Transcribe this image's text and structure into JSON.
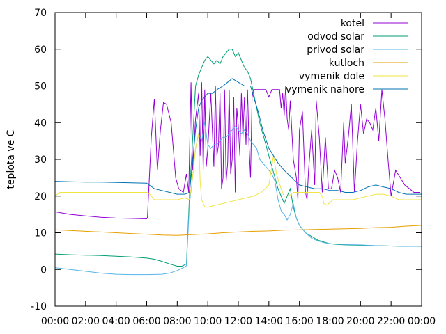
{
  "chart_data": {
    "type": "line",
    "title": "",
    "xlabel": "",
    "ylabel": "teplota ve C",
    "ylim": [
      -10,
      70
    ],
    "xlim": [
      0,
      24
    ],
    "grid": false,
    "legend_position": "top-right",
    "x_ticks": [
      "00:00",
      "02:00",
      "04:00",
      "06:00",
      "08:00",
      "10:00",
      "12:00",
      "14:00",
      "16:00",
      "18:00",
      "20:00",
      "22:00",
      "00:00"
    ],
    "y_ticks": [
      "-10",
      "0",
      "10",
      "20",
      "30",
      "40",
      "50",
      "60",
      "70"
    ],
    "series": [
      {
        "name": "kotel",
        "color": "#9400d3",
        "x": [
          0,
          1,
          2,
          3,
          4,
          5,
          6.0,
          6.05,
          6.3,
          6.5,
          6.7,
          6.9,
          7.1,
          7.3,
          7.6,
          7.9,
          8.1,
          8.4,
          8.6,
          8.75,
          8.9,
          9.0,
          9.2,
          9.4,
          9.5,
          9.6,
          9.7,
          9.8,
          9.9,
          10.0,
          10.2,
          10.4,
          10.5,
          10.6,
          10.7,
          10.8,
          10.9,
          11.0,
          11.1,
          11.2,
          11.3,
          11.4,
          11.5,
          11.6,
          11.7,
          11.8,
          11.9,
          12.0,
          12.1,
          12.2,
          12.3,
          12.4,
          12.5,
          12.6,
          12.7,
          12.8,
          12.9,
          13.0,
          13.2,
          13.4,
          13.6,
          13.8,
          14.0,
          14.2,
          14.4,
          14.5,
          14.6,
          14.7,
          14.8,
          14.9,
          15.0,
          15.1,
          15.2,
          15.3,
          15.4,
          15.6,
          15.8,
          15.9,
          16.0,
          16.2,
          16.4,
          16.5,
          16.6,
          16.8,
          17.0,
          17.1,
          17.3,
          17.5,
          17.7,
          17.9,
          18.1,
          18.3,
          18.5,
          18.7,
          18.9,
          19.0,
          19.2,
          19.4,
          19.6,
          19.8,
          20.0,
          20.2,
          20.4,
          20.6,
          20.8,
          21.0,
          21.2,
          21.4,
          21.6,
          21.8,
          22.0,
          22.3,
          22.6,
          22.9,
          23.2,
          23.5,
          23.9
        ],
        "y": [
          15.7,
          15.0,
          14.6,
          14.2,
          14.0,
          13.9,
          13.8,
          14.2,
          36,
          46.5,
          27,
          38,
          45.5,
          45,
          40,
          25,
          22,
          21,
          26,
          21,
          51,
          27,
          41,
          48,
          31,
          51,
          27,
          49,
          28,
          33,
          48,
          28,
          50,
          31,
          34,
          48,
          22,
          25,
          49,
          24,
          29,
          49,
          26,
          30,
          47,
          21,
          44,
          39,
          31,
          48,
          36,
          47,
          34,
          49,
          34,
          25,
          47,
          49,
          49,
          49,
          49,
          49,
          47,
          49,
          49,
          49,
          49,
          49,
          44,
          48,
          42,
          50,
          41,
          38,
          46,
          30,
          25,
          19,
          38,
          43,
          21,
          19,
          27,
          38,
          23,
          46,
          36,
          21,
          36,
          22,
          22,
          27,
          25,
          21,
          40,
          29,
          36,
          45,
          21,
          35,
          45,
          37,
          41,
          40,
          38,
          44,
          35,
          49,
          41,
          30,
          20,
          27,
          25,
          23,
          22,
          21,
          21
        ]
      },
      {
        "name": "odvod solar",
        "color": "#009e73",
        "x": [
          0,
          1,
          2,
          3,
          4,
          5,
          6,
          6.5,
          7,
          7.5,
          8,
          8.3,
          8.6,
          8.8,
          9.0,
          9.2,
          9.4,
          9.6,
          9.8,
          10.0,
          10.2,
          10.4,
          10.6,
          10.8,
          11.0,
          11.2,
          11.4,
          11.6,
          11.8,
          12.0,
          12.2,
          12.4,
          12.6,
          12.8,
          13.0,
          13.2,
          13.4,
          13.6,
          13.8,
          14.0,
          14.2,
          14.4,
          14.6,
          14.8,
          15.0,
          15.2,
          15.4,
          15.6,
          15.8,
          16.0,
          16.4,
          16.8,
          17.2,
          17.6,
          18.0,
          18.5,
          19,
          20,
          21,
          22,
          23,
          24
        ],
        "y": [
          4.2,
          4.0,
          3.9,
          3.8,
          3.6,
          3.4,
          3.1,
          2.8,
          2.2,
          1.5,
          0.9,
          0.9,
          1.5,
          20,
          35,
          50,
          53,
          55,
          57,
          58,
          57,
          56,
          57,
          56,
          58,
          59,
          60,
          60,
          58,
          59,
          57,
          55,
          54,
          52,
          48,
          44,
          40,
          37,
          34,
          31,
          28,
          25,
          22,
          20,
          18,
          20,
          22,
          17,
          14,
          12,
          10,
          9,
          8,
          7.5,
          7,
          6.8,
          6.7,
          6.6,
          6.5,
          6.4,
          6.3,
          6.3
        ]
      },
      {
        "name": "privod solar",
        "color": "#56b4e9",
        "x": [
          0,
          1,
          2,
          3,
          4,
          5,
          6,
          7,
          7.5,
          8,
          8.3,
          8.6,
          8.8,
          9.0,
          9.2,
          9.4,
          9.6,
          9.8,
          10.0,
          10.2,
          10.4,
          10.6,
          10.8,
          11.0,
          11.2,
          11.4,
          11.6,
          11.8,
          12.0,
          12.2,
          12.4,
          12.6,
          12.8,
          13.0,
          13.2,
          13.4,
          13.6,
          13.8,
          14.0,
          14.2,
          14.4,
          14.6,
          14.8,
          15.0,
          15.2,
          15.4,
          15.6,
          15.8,
          16.0,
          16.4,
          16.8,
          17.2,
          17.6,
          18,
          19,
          20,
          21,
          22,
          23,
          24
        ],
        "y": [
          0.5,
          0,
          -0.5,
          -1.0,
          -1.3,
          -1.4,
          -1.4,
          -1.3,
          -1.0,
          -0.3,
          0.3,
          1.0,
          18,
          25,
          33,
          37,
          35,
          40,
          34,
          33,
          34,
          34,
          35,
          36,
          36,
          37,
          38,
          39,
          38,
          37,
          38,
          37,
          35,
          34,
          33,
          30,
          29,
          28,
          27,
          26,
          24,
          19,
          16,
          15,
          13.5,
          15,
          18,
          14,
          12,
          10,
          8.5,
          7.8,
          7.3,
          7,
          6.8,
          6.7,
          6.5,
          6.4,
          6.3,
          6.3
        ]
      },
      {
        "name": "kutloch",
        "color": "#e69f00",
        "x": [
          0,
          1,
          2,
          3,
          4,
          5,
          6,
          7,
          8,
          9,
          10,
          11,
          12,
          13,
          14,
          15,
          16,
          17,
          18,
          19,
          20,
          21,
          22,
          23,
          24
        ],
        "y": [
          10.8,
          10.6,
          10.4,
          10.2,
          10.0,
          9.8,
          9.6,
          9.4,
          9.3,
          9.5,
          9.7,
          10.0,
          10.2,
          10.4,
          10.5,
          10.7,
          10.8,
          10.9,
          11.0,
          11.1,
          11.2,
          11.4,
          11.5,
          11.8,
          12.0
        ]
      },
      {
        "name": "vymenik dole",
        "color": "#f0e442",
        "x": [
          0,
          0.3,
          1,
          2,
          3,
          4,
          5,
          6,
          6.2,
          6.5,
          7,
          7.5,
          8,
          8.5,
          8.8,
          9.0,
          9.2,
          9.4,
          9.5,
          9.6,
          9.8,
          10.0,
          10.5,
          11.0,
          11.5,
          12.0,
          12.5,
          13.0,
          13.5,
          14.0,
          14.3,
          14.5,
          14.8,
          15.0,
          15.3,
          15.6,
          16.0,
          16.5,
          17.0,
          17.3,
          17.5,
          17.6,
          17.8,
          18.2,
          18.8,
          19.5,
          20,
          20.5,
          21,
          21.5,
          22,
          22.5,
          23,
          23.5,
          24
        ],
        "y": [
          20,
          21,
          21,
          21,
          21,
          21,
          21,
          21,
          20.5,
          19,
          19,
          19,
          19,
          19.5,
          19,
          25,
          33,
          37,
          24,
          19,
          17,
          17,
          17.5,
          18,
          18.5,
          19,
          19.5,
          20,
          21,
          23,
          31,
          26,
          22,
          20,
          20,
          21,
          21,
          21,
          21,
          21,
          20,
          18,
          17.5,
          19,
          19,
          19,
          19.5,
          20,
          20.5,
          20.5,
          20,
          19,
          19,
          19,
          19
        ]
      },
      {
        "name": "vymenik nahore",
        "color": "#0072b2",
        "x": [
          0,
          1,
          2,
          3,
          4,
          5,
          6,
          6.5,
          7,
          7.5,
          8,
          8.5,
          8.8,
          9.0,
          9.2,
          9.4,
          9.6,
          9.8,
          10.0,
          10.3,
          10.6,
          11.0,
          11.3,
          11.6,
          12.0,
          12.4,
          12.8,
          13.0,
          13.3,
          13.6,
          14.0,
          14.3,
          14.6,
          15.0,
          15.5,
          16,
          16.5,
          17,
          17.5,
          18,
          18.5,
          19,
          19.5,
          20,
          20.5,
          21,
          21.5,
          22,
          22.5,
          23,
          23.5,
          24
        ],
        "y": [
          24,
          23.9,
          23.8,
          23.8,
          23.7,
          23.6,
          23.5,
          22,
          21.5,
          21,
          20.5,
          20.5,
          21,
          29,
          38,
          44,
          46,
          47,
          48,
          48,
          49,
          50,
          51,
          52,
          51,
          50,
          50,
          47,
          43,
          38,
          33,
          31,
          29,
          27,
          25,
          23,
          22.5,
          22,
          22,
          21.5,
          21.5,
          21,
          21,
          21.5,
          22.5,
          23,
          22.5,
          22,
          21,
          20.5,
          20.5,
          20.5
        ]
      }
    ]
  }
}
